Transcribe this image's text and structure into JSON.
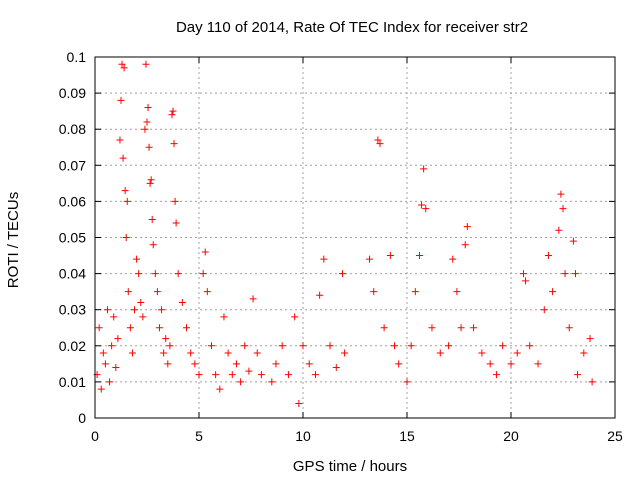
{
  "chart_data": {
    "type": "scatter",
    "title": "Day 110 of 2014, Rate Of TEC Index for receiver str2",
    "xlabel": "GPS time / hours",
    "ylabel": "ROTI / TECUs",
    "xlim": [
      0,
      25
    ],
    "ylim": [
      0,
      0.1
    ],
    "xticks": [
      0,
      5,
      10,
      15,
      20,
      25
    ],
    "yticks": [
      0,
      0.01,
      0.02,
      0.03,
      0.04,
      0.05,
      0.06,
      0.07,
      0.08,
      0.09,
      0.1
    ],
    "xtick_labels": [
      "0",
      "5",
      "10",
      "15",
      "20",
      "25"
    ],
    "ytick_labels": [
      "0",
      "0.01",
      "0.02",
      "0.03",
      "0.04",
      "0.05",
      "0.06",
      "0.07",
      "0.08",
      "0.09",
      "0.1"
    ],
    "grid": true,
    "marker": "+",
    "marker_color": "#ff0000",
    "series": [
      {
        "values": [
          [
            0.1,
            0.012
          ],
          [
            0.2,
            0.025
          ],
          [
            0.3,
            0.008
          ],
          [
            0.4,
            0.018
          ],
          [
            0.5,
            0.015
          ],
          [
            0.6,
            0.03
          ],
          [
            0.7,
            0.01
          ],
          [
            0.8,
            0.02
          ],
          [
            0.9,
            0.028
          ],
          [
            1.0,
            0.014
          ],
          [
            1.1,
            0.022
          ],
          [
            1.2,
            0.077
          ],
          [
            1.25,
            0.088
          ],
          [
            1.3,
            0.098
          ],
          [
            1.35,
            0.072
          ],
          [
            1.4,
            0.097
          ],
          [
            1.45,
            0.063
          ],
          [
            1.5,
            0.05
          ],
          [
            1.55,
            0.06
          ],
          [
            1.6,
            0.035
          ],
          [
            1.7,
            0.025
          ],
          [
            1.8,
            0.018
          ],
          [
            1.9,
            0.03
          ],
          [
            2.0,
            0.044
          ],
          [
            2.1,
            0.04
          ],
          [
            2.2,
            0.032
          ],
          [
            2.3,
            0.028
          ],
          [
            2.4,
            0.08
          ],
          [
            2.45,
            0.098
          ],
          [
            2.5,
            0.082
          ],
          [
            2.55,
            0.086
          ],
          [
            2.6,
            0.075
          ],
          [
            2.65,
            0.065
          ],
          [
            2.7,
            0.066
          ],
          [
            2.75,
            0.055
          ],
          [
            2.8,
            0.048
          ],
          [
            2.9,
            0.04
          ],
          [
            3.0,
            0.035
          ],
          [
            3.1,
            0.025
          ],
          [
            3.2,
            0.03
          ],
          [
            3.3,
            0.018
          ],
          [
            3.4,
            0.022
          ],
          [
            3.5,
            0.015
          ],
          [
            3.6,
            0.02
          ],
          [
            3.7,
            0.084
          ],
          [
            3.75,
            0.085
          ],
          [
            3.8,
            0.076
          ],
          [
            3.85,
            0.06
          ],
          [
            3.9,
            0.054
          ],
          [
            4.0,
            0.04
          ],
          [
            4.2,
            0.032
          ],
          [
            4.4,
            0.025
          ],
          [
            4.6,
            0.018
          ],
          [
            4.8,
            0.015
          ],
          [
            5.0,
            0.012
          ],
          [
            5.2,
            0.04
          ],
          [
            5.3,
            0.046
          ],
          [
            5.4,
            0.035
          ],
          [
            5.6,
            0.02
          ],
          [
            5.8,
            0.012
          ],
          [
            6.0,
            0.008
          ],
          [
            6.2,
            0.028
          ],
          [
            6.4,
            0.018
          ],
          [
            6.6,
            0.012
          ],
          [
            6.8,
            0.015
          ],
          [
            7.0,
            0.01
          ],
          [
            7.2,
            0.02
          ],
          [
            7.4,
            0.013
          ],
          [
            7.6,
            0.033
          ],
          [
            7.8,
            0.018
          ],
          [
            8.0,
            0.012
          ],
          [
            8.5,
            0.01
          ],
          [
            8.7,
            0.015
          ],
          [
            9.0,
            0.02
          ],
          [
            9.3,
            0.012
          ],
          [
            9.6,
            0.028
          ],
          [
            9.8,
            0.004
          ],
          [
            10.0,
            0.02
          ],
          [
            10.3,
            0.015
          ],
          [
            10.6,
            0.012
          ],
          [
            10.8,
            0.034
          ],
          [
            11.0,
            0.044
          ],
          [
            11.3,
            0.02
          ],
          [
            11.6,
            0.014
          ],
          [
            11.9,
            0.04
          ],
          [
            12.0,
            0.018
          ],
          [
            13.2,
            0.044
          ],
          [
            13.4,
            0.035
          ],
          [
            13.6,
            0.077
          ],
          [
            13.7,
            0.076
          ],
          [
            13.9,
            0.025
          ],
          [
            14.2,
            0.045
          ],
          [
            14.4,
            0.02
          ],
          [
            14.6,
            0.015
          ],
          [
            15.0,
            0.01
          ],
          [
            15.2,
            0.02
          ],
          [
            15.4,
            0.035
          ],
          [
            15.6,
            0.045
          ],
          [
            15.7,
            0.059
          ],
          [
            15.8,
            0.069
          ],
          [
            15.9,
            0.058
          ],
          [
            16.2,
            0.025
          ],
          [
            16.6,
            0.018
          ],
          [
            17.0,
            0.02
          ],
          [
            17.2,
            0.044
          ],
          [
            17.4,
            0.035
          ],
          [
            17.6,
            0.025
          ],
          [
            17.8,
            0.048
          ],
          [
            17.9,
            0.053
          ],
          [
            18.2,
            0.025
          ],
          [
            18.6,
            0.018
          ],
          [
            19.0,
            0.015
          ],
          [
            19.3,
            0.012
          ],
          [
            19.6,
            0.02
          ],
          [
            20.0,
            0.015
          ],
          [
            20.3,
            0.018
          ],
          [
            20.6,
            0.04
          ],
          [
            20.7,
            0.038
          ],
          [
            20.9,
            0.02
          ],
          [
            21.3,
            0.015
          ],
          [
            21.6,
            0.03
          ],
          [
            21.8,
            0.045
          ],
          [
            22.0,
            0.035
          ],
          [
            22.3,
            0.052
          ],
          [
            22.4,
            0.062
          ],
          [
            22.5,
            0.058
          ],
          [
            22.6,
            0.04
          ],
          [
            22.8,
            0.025
          ],
          [
            23.0,
            0.049
          ],
          [
            23.1,
            0.04
          ],
          [
            23.2,
            0.012
          ],
          [
            23.5,
            0.018
          ],
          [
            23.8,
            0.022
          ],
          [
            23.9,
            0.01
          ]
        ]
      }
    ]
  }
}
